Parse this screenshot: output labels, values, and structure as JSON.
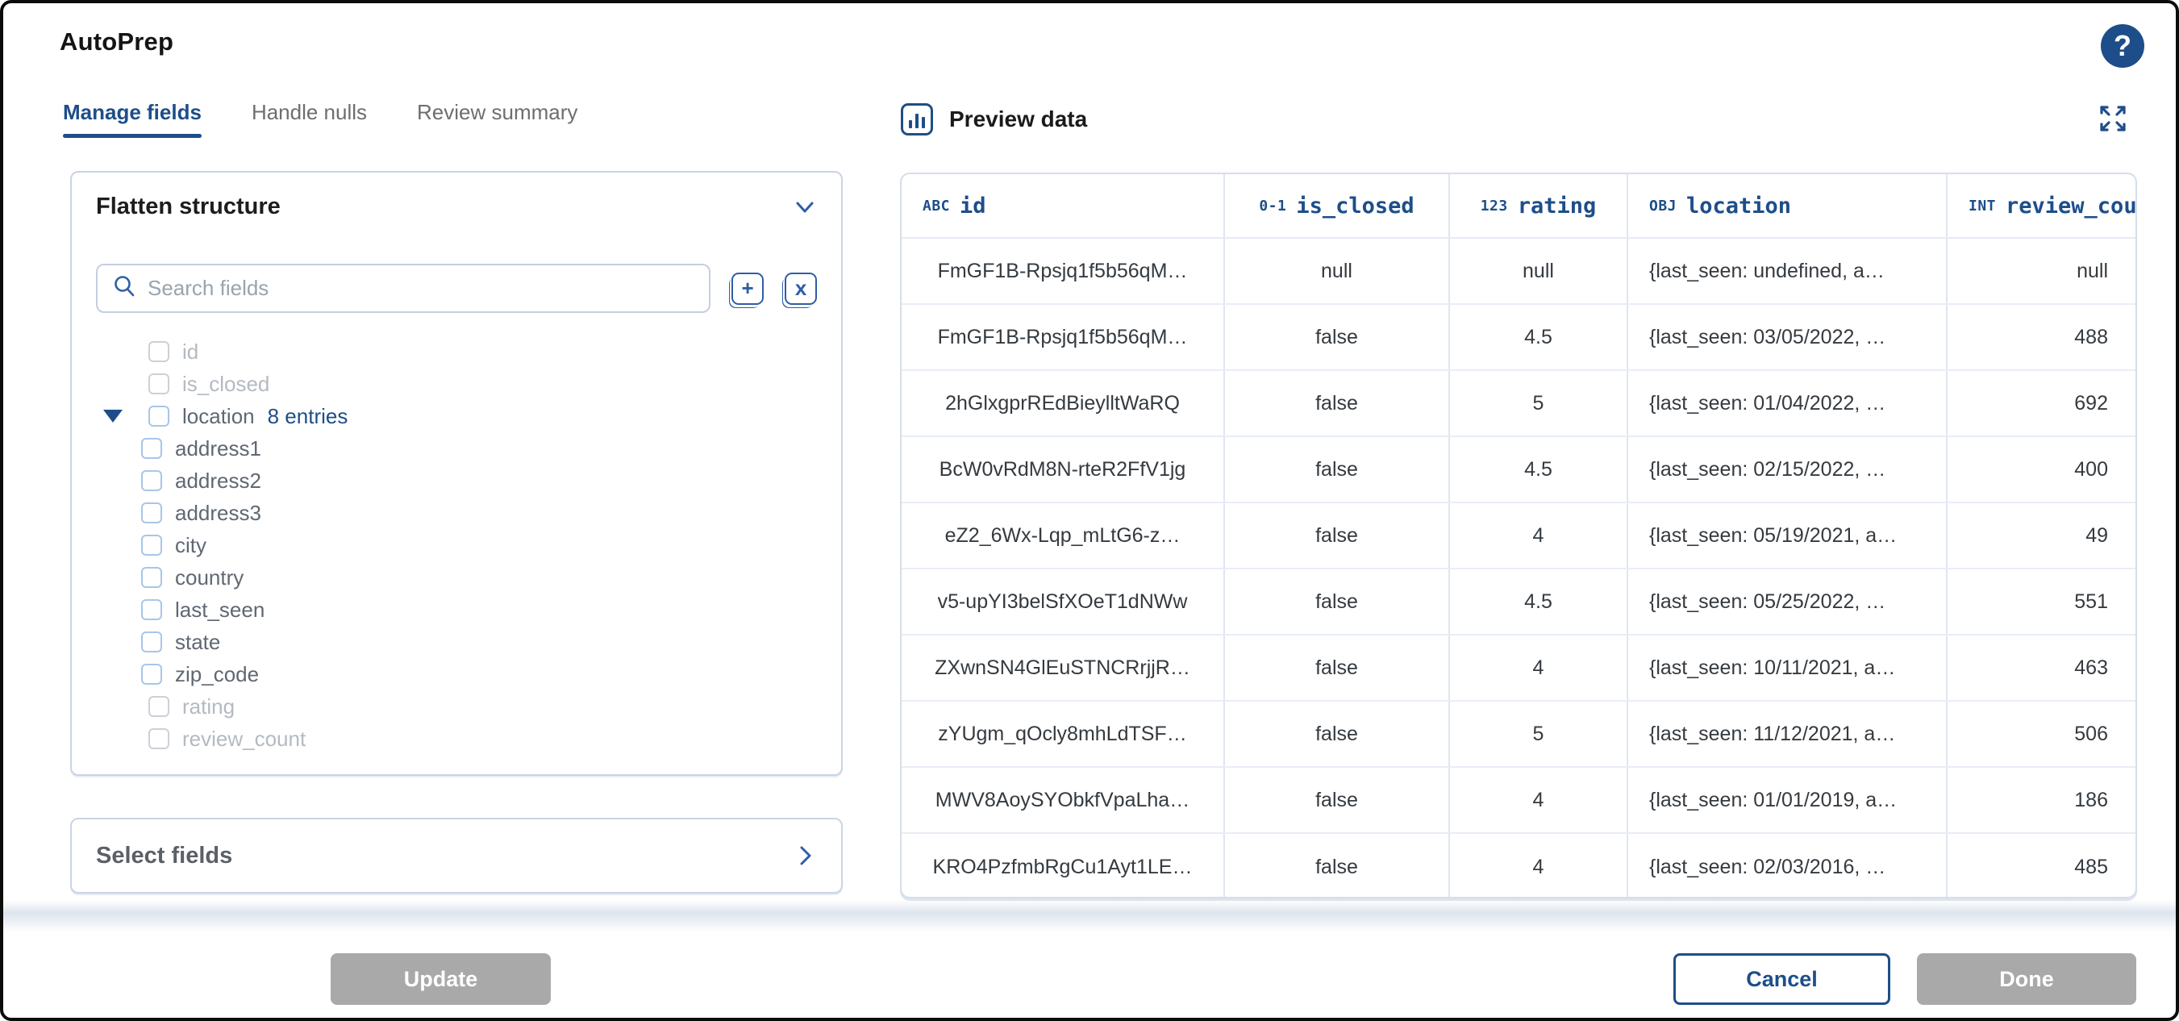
{
  "app": {
    "title": "AutoPrep"
  },
  "colors": {
    "accent": "#1d4e89",
    "icon_blue": "#2e5ea8",
    "disabled_button": "#a9a9a9",
    "disabled_text": "#b4bac1",
    "table_border": "#dfe6f1"
  },
  "tabs": [
    {
      "label": "Manage fields",
      "active": true
    },
    {
      "label": "Handle nulls",
      "active": false
    },
    {
      "label": "Review summary",
      "active": false
    }
  ],
  "flatten_panel": {
    "title": "Flatten structure",
    "search": {
      "placeholder": "Search fields",
      "value": ""
    },
    "tools": {
      "expand_all": "+",
      "collapse_all": "x"
    },
    "tree": [
      {
        "label": "id",
        "level": 0,
        "disabled": true
      },
      {
        "label": "is_closed",
        "level": 0,
        "disabled": true
      },
      {
        "label": "location",
        "level": 0,
        "disabled": false,
        "expanded": true,
        "badge": "8 entries"
      },
      {
        "label": "address1",
        "level": 1,
        "disabled": false
      },
      {
        "label": "address2",
        "level": 1,
        "disabled": false
      },
      {
        "label": "address3",
        "level": 1,
        "disabled": false
      },
      {
        "label": "city",
        "level": 1,
        "disabled": false
      },
      {
        "label": "country",
        "level": 1,
        "disabled": false
      },
      {
        "label": "last_seen",
        "level": 1,
        "disabled": false
      },
      {
        "label": "state",
        "level": 1,
        "disabled": false
      },
      {
        "label": "zip_code",
        "level": 1,
        "disabled": false
      },
      {
        "label": "rating",
        "level": 0,
        "disabled": true
      },
      {
        "label": "review_count",
        "level": 0,
        "disabled": true
      }
    ]
  },
  "select_panel": {
    "title": "Select fields"
  },
  "preview": {
    "title": "Preview data",
    "columns": [
      {
        "tag": "ABC",
        "name": "id",
        "header_align": "left",
        "cell_align": "center"
      },
      {
        "tag": "0-1",
        "name": "is_closed",
        "header_align": "center",
        "cell_align": "center"
      },
      {
        "tag": "123",
        "name": "rating",
        "header_align": "center",
        "cell_align": "center"
      },
      {
        "tag": "OBJ",
        "name": "location",
        "header_align": "left",
        "cell_align": "left"
      },
      {
        "tag": "INT",
        "name": "review_count",
        "header_align": "left",
        "cell_align": "right"
      }
    ],
    "rows": [
      [
        "FmGF1B-Rpsjq1f5b56qM…",
        "null",
        "null",
        "{last_seen: undefined, a…",
        "null"
      ],
      [
        "FmGF1B-Rpsjq1f5b56qM…",
        "false",
        "4.5",
        "{last_seen: 03/05/2022, …",
        "488"
      ],
      [
        "2hGlxgprREdBieylltWaRQ",
        "false",
        "5",
        "{last_seen: 01/04/2022, …",
        "692"
      ],
      [
        "BcW0vRdM8N-rteR2FfV1jg",
        "false",
        "4.5",
        "{last_seen: 02/15/2022, …",
        "400"
      ],
      [
        "eZ2_6Wx-Lqp_mLtG6-z…",
        "false",
        "4",
        "{last_seen: 05/19/2021, a…",
        "49"
      ],
      [
        "v5-upYI3belSfXOeT1dNWw",
        "false",
        "4.5",
        "{last_seen: 05/25/2022, …",
        "551"
      ],
      [
        "ZXwnSN4GlEuSTNCRrjjR…",
        "false",
        "4",
        "{last_seen: 10/11/2021, a…",
        "463"
      ],
      [
        "zYUgm_qOcly8mhLdTSF…",
        "false",
        "5",
        "{last_seen: 11/12/2021, a…",
        "506"
      ],
      [
        "MWV8AoySYObkfVpaLha…",
        "false",
        "4",
        "{last_seen: 01/01/2019, a…",
        "186"
      ],
      [
        "KRO4PzfmbRgCu1Ayt1LE…",
        "false",
        "4",
        "{last_seen: 02/03/2016, …",
        "485"
      ]
    ]
  },
  "footer": {
    "update_label": "Update",
    "cancel_label": "Cancel",
    "done_label": "Done"
  }
}
